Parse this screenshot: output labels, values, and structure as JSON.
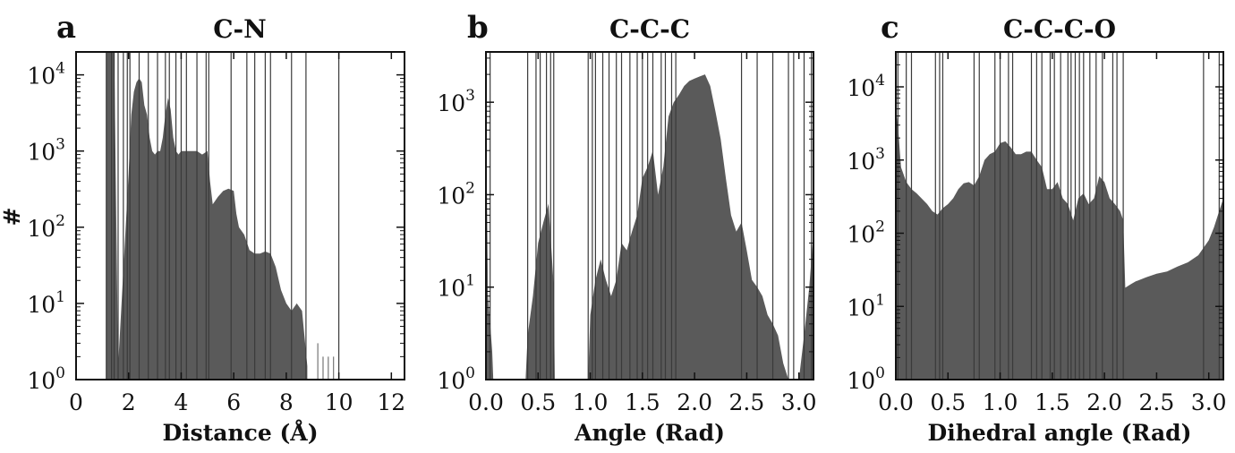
{
  "chart_data": [
    {
      "type": "area",
      "panel_label": "a",
      "title": "C-N",
      "xlabel": "Distance (Å)",
      "ylabel": "#",
      "xlim": [
        0,
        12.5
      ],
      "ylim": [
        1,
        20000
      ],
      "yscale": "log",
      "xticks": [
        0,
        2,
        4,
        6,
        8,
        10,
        12
      ],
      "yticks": [
        {
          "base": "10",
          "exp": "0"
        },
        {
          "base": "10",
          "exp": "1"
        },
        {
          "base": "10",
          "exp": "2"
        },
        {
          "base": "10",
          "exp": "3"
        },
        {
          "base": "10",
          "exp": "4"
        }
      ],
      "fill_color": "#5a5a5a",
      "x": [
        1.15,
        1.3,
        1.45,
        1.6,
        2.0,
        2.1,
        2.2,
        2.3,
        2.4,
        2.5,
        2.6,
        2.7,
        2.8,
        2.9,
        3.0,
        3.1,
        3.2,
        3.3,
        3.4,
        3.5,
        3.6,
        3.7,
        3.8,
        3.9,
        4.0,
        4.2,
        4.4,
        4.6,
        4.8,
        5.0,
        5.1,
        5.2,
        5.4,
        5.6,
        5.8,
        6.0,
        6.1,
        6.2,
        6.4,
        6.6,
        6.8,
        7.0,
        7.2,
        7.4,
        7.6,
        7.8,
        8.0,
        8.2,
        8.4,
        8.6,
        8.8
      ],
      "y": [
        20000,
        20000,
        20000,
        1.5,
        500,
        3000,
        6000,
        8000,
        9000,
        8000,
        4000,
        3000,
        1500,
        1000,
        900,
        1000,
        1000,
        1500,
        3000,
        5000,
        3500,
        1500,
        1000,
        900,
        1000,
        1000,
        1000,
        1000,
        900,
        1000,
        400,
        200,
        250,
        300,
        320,
        300,
        150,
        100,
        80,
        50,
        45,
        45,
        48,
        45,
        30,
        15,
        10,
        8,
        10,
        8,
        1.5
      ],
      "sparse_x": [
        9.2,
        9.4,
        9.6,
        9.8
      ],
      "sparse_y": [
        3,
        2,
        2,
        2
      ],
      "spike_x": [
        1.15,
        1.35,
        1.45,
        1.6,
        1.8,
        1.95,
        2.05,
        2.4,
        2.75,
        3.1,
        3.4,
        3.55,
        3.8,
        4.0,
        4.2,
        4.6,
        4.95,
        5.05,
        5.9,
        6.5,
        6.8,
        7.2,
        7.4,
        8.2,
        8.75,
        10.0
      ]
    },
    {
      "type": "area",
      "panel_label": "b",
      "title": "C-C-C",
      "xlabel": "Angle (Rad)",
      "ylabel": "",
      "xlim": [
        0,
        3.14
      ],
      "ylim": [
        1,
        3500
      ],
      "yscale": "log",
      "xticks": [
        0.0,
        0.5,
        1.0,
        1.5,
        2.0,
        2.5,
        3.0
      ],
      "yticks": [
        {
          "base": "10",
          "exp": "0"
        },
        {
          "base": "10",
          "exp": "1"
        },
        {
          "base": "10",
          "exp": "2"
        },
        {
          "base": "10",
          "exp": "3"
        }
      ],
      "fill_color": "#5a5a5a",
      "x": [
        0.0,
        0.02,
        0.04,
        0.06,
        0.07,
        0.38,
        0.4,
        0.45,
        0.5,
        0.55,
        0.6,
        0.65,
        0.66,
        0.98,
        1.0,
        1.05,
        1.1,
        1.15,
        1.2,
        1.25,
        1.3,
        1.35,
        1.4,
        1.45,
        1.5,
        1.55,
        1.6,
        1.65,
        1.7,
        1.75,
        1.8,
        1.85,
        1.9,
        1.95,
        2.0,
        2.05,
        2.1,
        2.15,
        2.2,
        2.25,
        2.3,
        2.35,
        2.4,
        2.45,
        2.5,
        2.55,
        2.6,
        2.65,
        2.7,
        2.75,
        2.8,
        2.85,
        2.9,
        3.0,
        3.05,
        3.1,
        3.14
      ],
      "y": [
        1000,
        8,
        4,
        2,
        1,
        1,
        3,
        8,
        30,
        50,
        80,
        10,
        1,
        1,
        5,
        12,
        20,
        12,
        8,
        12,
        30,
        25,
        40,
        60,
        150,
        200,
        300,
        100,
        200,
        700,
        1000,
        1200,
        1500,
        1700,
        1800,
        1900,
        2000,
        1500,
        800,
        400,
        150,
        60,
        40,
        50,
        25,
        12,
        10,
        8,
        5,
        4,
        3,
        1.5,
        1,
        1,
        3,
        10,
        40
      ],
      "sparse_x": [],
      "sparse_y": [],
      "spike_x": [
        0.04,
        0.4,
        0.48,
        0.52,
        0.58,
        0.62,
        0.65,
        0.98,
        1.02,
        1.05,
        1.12,
        1.18,
        1.25,
        1.3,
        1.38,
        1.45,
        1.5,
        1.55,
        1.6,
        1.68,
        1.72,
        1.78,
        1.82,
        2.45,
        2.6,
        2.75,
        2.9,
        2.95,
        3.05,
        3.12
      ]
    },
    {
      "type": "area",
      "panel_label": "c",
      "title": "C-C-C-O",
      "xlabel": "Dihedral angle (Rad)",
      "ylabel": "",
      "xlim": [
        0,
        3.14
      ],
      "ylim": [
        1,
        30000
      ],
      "yscale": "log",
      "xticks": [
        0.0,
        0.5,
        1.0,
        1.5,
        2.0,
        2.5,
        3.0
      ],
      "yticks": [
        {
          "base": "10",
          "exp": "0"
        },
        {
          "base": "10",
          "exp": "1"
        },
        {
          "base": "10",
          "exp": "2"
        },
        {
          "base": "10",
          "exp": "3"
        },
        {
          "base": "10",
          "exp": "4"
        }
      ],
      "fill_color": "#5a5a5a",
      "x": [
        0.0,
        0.02,
        0.05,
        0.1,
        0.15,
        0.2,
        0.3,
        0.35,
        0.4,
        0.45,
        0.5,
        0.55,
        0.6,
        0.65,
        0.7,
        0.75,
        0.8,
        0.85,
        0.9,
        0.95,
        1.0,
        1.05,
        1.1,
        1.15,
        1.2,
        1.25,
        1.3,
        1.35,
        1.4,
        1.45,
        1.5,
        1.55,
        1.6,
        1.65,
        1.7,
        1.75,
        1.8,
        1.85,
        1.9,
        1.95,
        2.0,
        2.05,
        2.1,
        2.15,
        2.18,
        2.2,
        2.25,
        2.3,
        2.4,
        2.5,
        2.6,
        2.7,
        2.8,
        2.9,
        3.0,
        3.05,
        3.1,
        3.14
      ],
      "y": [
        5000,
        3000,
        800,
        500,
        400,
        350,
        250,
        200,
        180,
        220,
        250,
        300,
        400,
        480,
        500,
        450,
        600,
        1000,
        1200,
        1300,
        1700,
        1800,
        1500,
        1200,
        1200,
        1300,
        1300,
        1000,
        800,
        400,
        400,
        500,
        300,
        250,
        150,
        300,
        350,
        250,
        300,
        600,
        500,
        300,
        250,
        200,
        150,
        18,
        20,
        22,
        25,
        28,
        30,
        35,
        40,
        50,
        80,
        120,
        200,
        300
      ],
      "sparse_x": [],
      "sparse_y": [],
      "spike_x": [
        0.02,
        0.1,
        0.15,
        0.38,
        0.42,
        0.45,
        0.75,
        0.8,
        0.95,
        1.0,
        1.08,
        1.12,
        1.3,
        1.35,
        1.4,
        1.48,
        1.52,
        1.58,
        1.65,
        1.68,
        1.72,
        1.76,
        1.8,
        1.86,
        1.92,
        1.98,
        2.08,
        2.12,
        2.18,
        2.95,
        3.1
      ]
    }
  ]
}
